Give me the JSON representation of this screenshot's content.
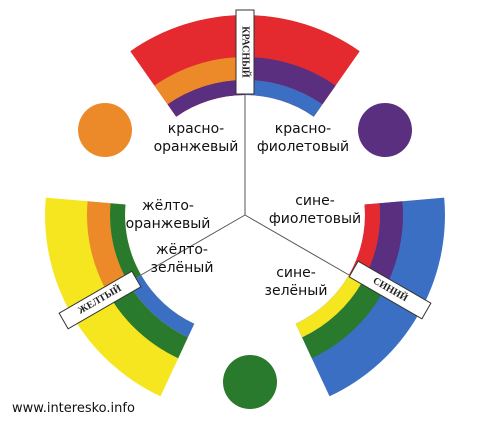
{
  "segments": [
    {
      "name": "КРАСНЫЙ"
    },
    {
      "name": "ЖЕЛТЫЙ"
    },
    {
      "name": "СИНИЙ"
    }
  ],
  "mixes": [
    {
      "lines": [
        "красно-",
        "оранжевый"
      ]
    },
    {
      "lines": [
        "красно-",
        "фиолетовый"
      ]
    },
    {
      "lines": [
        "жёлто-",
        "оранжевый"
      ]
    },
    {
      "lines": [
        "сине-",
        "фиолетовый"
      ]
    },
    {
      "lines": [
        "жёлто-",
        "зелёный"
      ]
    },
    {
      "lines": [
        "сине-",
        "зелёный"
      ]
    }
  ],
  "watermark": "www.interesko.info"
}
